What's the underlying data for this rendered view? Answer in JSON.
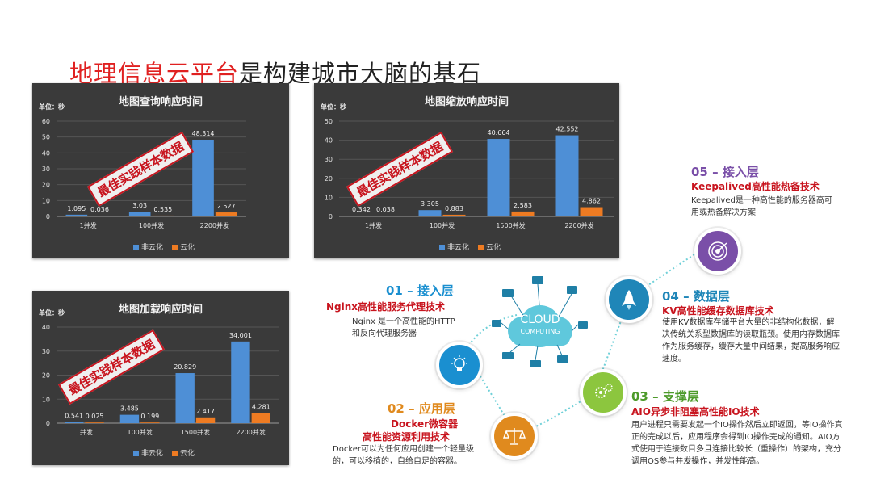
{
  "title": {
    "accent": "地理信息云平台",
    "rest": "是构建城市大脑的基石"
  },
  "stamp_text": "最佳实践样本数据",
  "charts": [
    {
      "title": "地图查询响应时间",
      "unit": "单位：秒",
      "chart_data": {
        "type": "bar",
        "categories": [
          "1并发",
          "100并发",
          "2200并发"
        ],
        "series": [
          {
            "name": "非云化",
            "values": [
              1.095,
              3.03,
              48.314
            ]
          },
          {
            "name": "云化",
            "values": [
              0.036,
              0.535,
              2.527
            ]
          }
        ],
        "value_labels": [
          [
            "1.095",
            "3.03",
            "48.314"
          ],
          [
            "0.036",
            "0.535",
            "2.527"
          ]
        ],
        "yticks": [
          0,
          10,
          20,
          30,
          40,
          50,
          60
        ],
        "ylim": [
          0,
          60
        ],
        "legend": "bottom"
      }
    },
    {
      "title": "地图缩放响应时间",
      "unit": "单位：秒",
      "chart_data": {
        "type": "bar",
        "categories": [
          "1并发",
          "100并发",
          "1500并发",
          "2200并发"
        ],
        "series": [
          {
            "name": "非云化",
            "values": [
              0.342,
              3.305,
              40.664,
              42.552
            ]
          },
          {
            "name": "云化",
            "values": [
              0.038,
              0.883,
              2.583,
              4.862
            ]
          }
        ],
        "value_labels": [
          [
            "0.342",
            "3.305",
            "40.664",
            "42.552"
          ],
          [
            "0.038",
            "0.883",
            "2.583",
            "4.862"
          ]
        ],
        "yticks": [
          0,
          10,
          20,
          30,
          40,
          50
        ],
        "ylim": [
          0,
          50
        ],
        "legend": "bottom"
      }
    },
    {
      "title": "地图加载响应时间",
      "unit": "单位：秒",
      "chart_data": {
        "type": "bar",
        "categories": [
          "1并发",
          "100并发",
          "1500并发",
          "2200并发"
        ],
        "series": [
          {
            "name": "非云化",
            "values": [
              0.541,
              3.485,
              20.829,
              34.001
            ]
          },
          {
            "name": "云化",
            "values": [
              0.025,
              0.199,
              2.417,
              4.281
            ]
          }
        ],
        "value_labels": [
          [
            "0.541",
            "3.485",
            "20.829",
            "34.001"
          ],
          [
            "0.025",
            "0.199",
            "2.417",
            "4.281"
          ]
        ],
        "yticks": [
          0,
          10,
          20,
          30,
          40
        ],
        "ylim": [
          0,
          40
        ],
        "legend": "bottom"
      }
    }
  ],
  "colors": {
    "non_cloud": "#4e8fd6",
    "cloud": "#ee7b22",
    "accent_red": "#c8141e"
  },
  "diagram": {
    "cloud": {
      "line1": "CLOUD",
      "line2": "COMPUTING"
    },
    "layers": [
      {
        "title": "01 – 接入层",
        "sub": "Nginx高性能服务代理技术",
        "desc": "Nginx 是一个高性能的HTTP和反向代理服务器",
        "color": "#1a8fd0",
        "icon": "lightbulb-icon"
      },
      {
        "title": "02 – 应用层",
        "sub": "Docker微容器",
        "sub2": "高性能资源利用技术",
        "desc": "Docker可以为任何应用创建一个轻量级的，可以移植的，自给自足的容器。",
        "color": "#e08a1e",
        "icon": "balance-scale-icon"
      },
      {
        "title": "03 – 支撑层",
        "sub": "AIO异步非阻塞高性能IO技术",
        "desc": "用户进程只需要发起一个IO操作然后立即返回，等IO操作真正的完成以后，应用程序会得到IO操作完成的通知。AIO方式使用于连接数目多且连接比较长（重操作）的架构，充分调用OS参与并发操作，并发性能高。",
        "color": "#4d9a2a",
        "icon": "gears-icon"
      },
      {
        "title": "04 – 数据层",
        "sub": "KV高性能缓存数据库技术",
        "desc": "使用KV数据库存储平台大量的非结构化数据，解决传统关系型数据库的读取瓶颈。使用内存数据库作为服务缓存，缓存大量中间结果，提高服务响应速度。",
        "color": "#1f86b8",
        "icon": "rocket-icon"
      },
      {
        "title": "05 – 接入层",
        "sub": "Keepalived高性能热备技术",
        "desc": "Keepalived是一种高性能的服务器高可用或热备解决方案",
        "color": "#7a4fa8",
        "icon": "target-icon"
      }
    ]
  }
}
